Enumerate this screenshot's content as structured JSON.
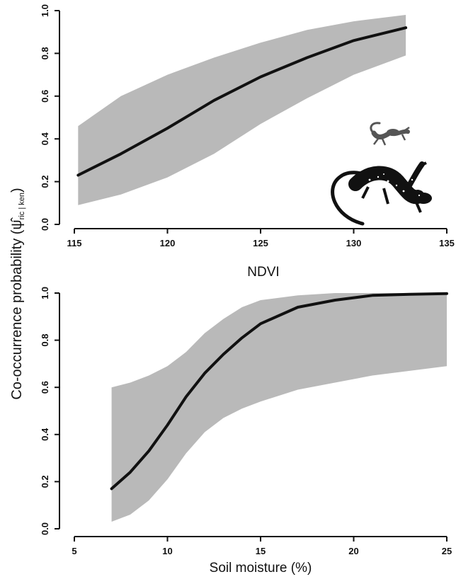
{
  "figure": {
    "shared_ylabel": "Co-occurrence probability (",
    "ylabel_symbol": "ψ̂",
    "ylabel_subscript": "ric | ken",
    "ylabel_close": ")"
  },
  "chart_data": [
    {
      "type": "line",
      "panel": "top",
      "xlabel": "NDVI",
      "xlim": [
        115,
        135
      ],
      "ylim": [
        0,
        1
      ],
      "xticks": [
        "115",
        "120",
        "125",
        "130",
        "135"
      ],
      "yticks": [
        "0.0",
        "0.2",
        "0.4",
        "0.6",
        "0.8",
        "1.0"
      ],
      "grid": false,
      "series": [
        {
          "role": "estimate",
          "x": [
            115.2,
            117.5,
            120,
            122.5,
            125,
            127.5,
            130,
            132.8
          ],
          "y": [
            0.23,
            0.33,
            0.45,
            0.58,
            0.69,
            0.78,
            0.86,
            0.92
          ]
        }
      ],
      "confidence_band": {
        "x": [
          115.2,
          117.5,
          120,
          122.5,
          125,
          127.5,
          130,
          132.8
        ],
        "lower": [
          0.09,
          0.14,
          0.22,
          0.33,
          0.47,
          0.59,
          0.7,
          0.79
        ],
        "upper": [
          0.46,
          0.6,
          0.7,
          0.78,
          0.85,
          0.91,
          0.95,
          0.98
        ]
      },
      "colors": {
        "line": "#111111",
        "band": "#b9b9b9"
      },
      "icons": [
        "salamander-small-icon",
        "salamander-large-spotted-icon"
      ]
    },
    {
      "type": "line",
      "panel": "bottom",
      "xlabel": "Soil moisture (%)",
      "xlim": [
        5,
        25
      ],
      "ylim": [
        0,
        1
      ],
      "xticks": [
        "5",
        "10",
        "15",
        "20",
        "25"
      ],
      "yticks": [
        "0.0",
        "0.2",
        "0.4",
        "0.6",
        "0.8",
        "1.0"
      ],
      "grid": false,
      "series": [
        {
          "role": "estimate",
          "x": [
            7,
            8,
            9,
            10,
            11,
            12,
            13,
            14,
            15,
            17,
            19,
            21,
            23,
            25
          ],
          "y": [
            0.17,
            0.24,
            0.33,
            0.44,
            0.56,
            0.66,
            0.74,
            0.81,
            0.87,
            0.94,
            0.97,
            0.99,
            0.995,
            0.998
          ]
        }
      ],
      "confidence_band": {
        "x": [
          7,
          8,
          9,
          10,
          11,
          12,
          13,
          14,
          15,
          17,
          19,
          21,
          23,
          25
        ],
        "lower": [
          0.03,
          0.06,
          0.12,
          0.21,
          0.32,
          0.41,
          0.47,
          0.51,
          0.54,
          0.59,
          0.62,
          0.65,
          0.67,
          0.69
        ],
        "upper": [
          0.6,
          0.62,
          0.65,
          0.69,
          0.75,
          0.83,
          0.89,
          0.94,
          0.97,
          0.99,
          1.0,
          1.0,
          1.0,
          1.0
        ]
      },
      "colors": {
        "line": "#111111",
        "band": "#b9b9b9"
      }
    }
  ]
}
